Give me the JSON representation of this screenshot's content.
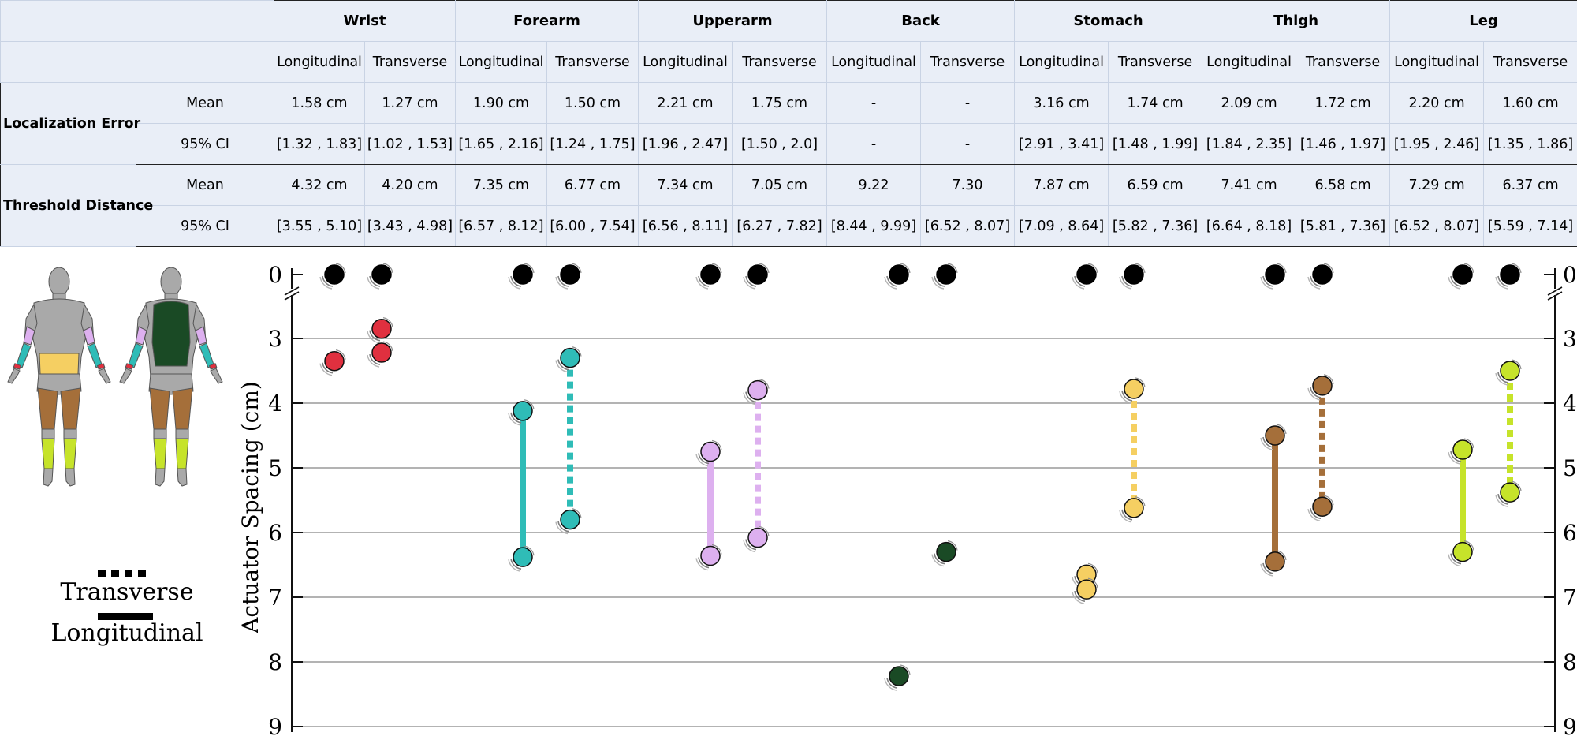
{
  "table": {
    "regions": [
      "Wrist",
      "Forearm",
      "Upperarm",
      "Back",
      "Stomach",
      "Thigh",
      "Leg"
    ],
    "subheaders": [
      "Longitudinal",
      "Transverse"
    ],
    "groups": [
      {
        "label": "Localization Error",
        "rows": [
          {
            "label": "Mean",
            "cells": [
              "1.58 cm",
              "1.27 cm",
              "1.90 cm",
              "1.50 cm",
              "2.21 cm",
              "1.75 cm",
              "-",
              "-",
              "3.16 cm",
              "1.74 cm",
              "2.09 cm",
              "1.72 cm",
              "2.20 cm",
              "1.60 cm"
            ]
          },
          {
            "label": "95% CI",
            "cells": [
              "[1.32 , 1.83]",
              "[1.02 , 1.53]",
              "[1.65 , 2.16]",
              "[1.24 , 1.75]",
              "[1.96 , 2.47]",
              "[1.50 , 2.0]",
              "-",
              "-",
              "[2.91 , 3.41]",
              "[1.48 , 1.99]",
              "[1.84 , 2.35]",
              "[1.46 , 1.97]",
              "[1.95 , 2.46]",
              "[1.35 , 1.86]"
            ]
          }
        ]
      },
      {
        "label": "Threshold Distance",
        "rows": [
          {
            "label": "Mean",
            "cells": [
              "4.32 cm",
              "4.20 cm",
              "7.35 cm",
              "6.77 cm",
              "7.34 cm",
              "7.05 cm",
              "9.22",
              "7.30",
              "7.87 cm",
              "6.59 cm",
              "7.41 cm",
              "6.58 cm",
              "7.29 cm",
              "6.37 cm"
            ]
          },
          {
            "label": "95% CI",
            "cells": [
              "[3.55 , 5.10]",
              "[3.43 , 4.98]",
              "[6.57 , 8.12]",
              "[6.00 , 7.54]",
              "[6.56 , 8.11]",
              "[6.27 , 7.82]",
              "[8.44 , 9.99]",
              "[6.52 , 8.07]",
              "[7.09 , 8.64]",
              "[5.82 , 7.36]",
              "[6.64 , 8.18]",
              "[5.81 , 7.36]",
              "[6.52 , 8.07]",
              "[5.59 , 7.14]"
            ]
          }
        ]
      }
    ]
  },
  "legend": {
    "transverse_label": "Transverse",
    "longitudinal_label": "Longitudinal"
  },
  "chart_data": {
    "type": "scatter",
    "ylabel": "Actuator Spacing (cm)",
    "yticks": [
      0,
      3,
      4,
      5,
      6,
      7,
      8,
      9
    ],
    "ylim": [
      0,
      9
    ],
    "axis_break_after": 0,
    "reference_value": 0,
    "series": [
      {
        "name": "Wrist Longitudinal",
        "region": "Wrist",
        "direction": "Longitudinal",
        "color": "#e0303f",
        "points": [
          3.35
        ],
        "connect": false
      },
      {
        "name": "Wrist Transverse",
        "region": "Wrist",
        "direction": "Transverse",
        "color": "#e0303f",
        "points": [
          2.85,
          3.22
        ],
        "connect": false
      },
      {
        "name": "Forearm Longitudinal",
        "region": "Forearm",
        "direction": "Longitudinal",
        "color": "#2fbcb7",
        "points": [
          4.12,
          6.38
        ],
        "connect": true
      },
      {
        "name": "Forearm Transverse",
        "region": "Forearm",
        "direction": "Transverse",
        "color": "#2fbcb7",
        "points": [
          3.3,
          5.8
        ],
        "connect": true
      },
      {
        "name": "Upperarm Longitudinal",
        "region": "Upperarm",
        "direction": "Longitudinal",
        "color": "#ddb0ef",
        "points": [
          4.75,
          6.36
        ],
        "connect": true
      },
      {
        "name": "Upperarm Transverse",
        "region": "Upperarm",
        "direction": "Transverse",
        "color": "#ddb0ef",
        "points": [
          3.8,
          6.08
        ],
        "connect": true
      },
      {
        "name": "Back Longitudinal",
        "region": "Back",
        "direction": "Longitudinal",
        "color": "#1a4a25",
        "points": [
          8.22
        ],
        "connect": false
      },
      {
        "name": "Back Transverse",
        "region": "Back",
        "direction": "Transverse",
        "color": "#1a4a25",
        "points": [
          6.3
        ],
        "connect": false
      },
      {
        "name": "Stomach Longitudinal",
        "region": "Stomach",
        "direction": "Longitudinal",
        "color": "#f5cf62",
        "points": [
          6.65,
          6.88
        ],
        "connect": false
      },
      {
        "name": "Stomach Transverse",
        "region": "Stomach",
        "direction": "Transverse",
        "color": "#f5cf62",
        "points": [
          3.78,
          5.62
        ],
        "connect": true
      },
      {
        "name": "Thigh Longitudinal",
        "region": "Thigh",
        "direction": "Longitudinal",
        "color": "#a56f3a",
        "points": [
          4.5,
          6.45
        ],
        "connect": true
      },
      {
        "name": "Thigh Transverse",
        "region": "Thigh",
        "direction": "Transverse",
        "color": "#a56f3a",
        "points": [
          3.73,
          5.6
        ],
        "connect": true
      },
      {
        "name": "Leg Longitudinal",
        "region": "Leg",
        "direction": "Longitudinal",
        "color": "#c6e32a",
        "points": [
          4.72,
          6.3
        ],
        "connect": true
      },
      {
        "name": "Leg Transverse",
        "region": "Leg",
        "direction": "Transverse",
        "color": "#c6e32a",
        "points": [
          3.5,
          5.38
        ],
        "connect": true
      }
    ]
  },
  "colors": {
    "wrist": "#e0303f",
    "forearm": "#2fbcb7",
    "upperarm": "#ddb0ef",
    "back": "#1a4a25",
    "stomach": "#f5cf62",
    "thigh": "#a56f3a",
    "leg": "#c6e32a",
    "body": "#a9a9a9",
    "reference": "#000000"
  }
}
